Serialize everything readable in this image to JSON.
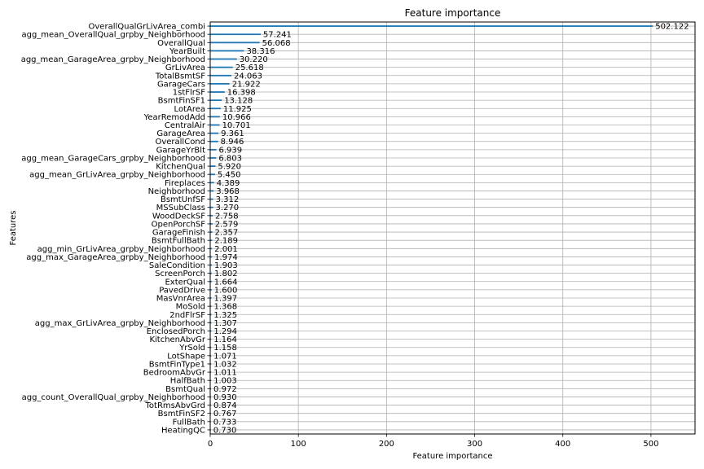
{
  "chart_data": {
    "type": "bar",
    "orientation": "horizontal",
    "title": "Feature importance",
    "xlabel": "Feature importance",
    "ylabel": "Features",
    "xlim": [
      0,
      550
    ],
    "xticks": [
      0,
      100,
      200,
      300,
      400,
      500
    ],
    "grid": true,
    "bar_color": "#1f77b4",
    "categories": [
      "OverallQualGrLivArea_combi",
      "agg_mean_OverallQual_grpby_Neighborhood",
      "OverallQual",
      "YearBuilt",
      "agg_mean_GarageArea_grpby_Neighborhood",
      "GrLivArea",
      "TotalBsmtSF",
      "GarageCars",
      "1stFlrSF",
      "BsmtFinSF1",
      "LotArea",
      "YearRemodAdd",
      "CentralAir",
      "GarageArea",
      "OverallCond",
      "GarageYrBlt",
      "agg_mean_GarageCars_grpby_Neighborhood",
      "KitchenQual",
      "agg_mean_GrLivArea_grpby_Neighborhood",
      "Fireplaces",
      "Neighborhood",
      "BsmtUnfSF",
      "MSSubClass",
      "WoodDeckSF",
      "OpenPorchSF",
      "GarageFinish",
      "BsmtFullBath",
      "agg_min_GrLivArea_grpby_Neighborhood",
      "agg_max_GarageArea_grpby_Neighborhood",
      "SaleCondition",
      "ScreenPorch",
      "ExterQual",
      "PavedDrive",
      "MasVnrArea",
      "MoSold",
      "2ndFlrSF",
      "agg_max_GrLivArea_grpby_Neighborhood",
      "EnclosedPorch",
      "KitchenAbvGr",
      "YrSold",
      "LotShape",
      "BsmtFinType1",
      "BedroomAbvGr",
      "HalfBath",
      "BsmtQual",
      "agg_count_OverallQual_grpby_Neighborhood",
      "TotRmsAbvGrd",
      "BsmtFinSF2",
      "FullBath",
      "HeatingQC"
    ],
    "values": [
      502.122,
      57.241,
      56.068,
      38.316,
      30.22,
      25.618,
      24.063,
      21.922,
      16.398,
      13.128,
      11.925,
      10.966,
      10.701,
      9.361,
      8.946,
      6.939,
      6.803,
      5.92,
      5.45,
      4.389,
      3.968,
      3.312,
      3.27,
      2.758,
      2.579,
      2.357,
      2.189,
      2.001,
      1.974,
      1.903,
      1.802,
      1.664,
      1.6,
      1.397,
      1.368,
      1.325,
      1.307,
      1.294,
      1.164,
      1.158,
      1.071,
      1.032,
      1.011,
      1.003,
      0.972,
      0.93,
      0.874,
      0.767,
      0.733,
      0.73
    ],
    "value_labels": [
      "502.122",
      "57.241",
      "56.068",
      "38.316",
      "30.220",
      "25.618",
      "24.063",
      "21.922",
      "16.398",
      "13.128",
      "11.925",
      "10.966",
      "10.701",
      "9.361",
      "8.946",
      "6.939",
      "6.803",
      "5.920",
      "5.450",
      "4.389",
      "3.968",
      "3.312",
      "3.270",
      "2.758",
      "2.579",
      "2.357",
      "2.189",
      "2.001",
      "1.974",
      "1.903",
      "1.802",
      "1.664",
      "1.600",
      "1.397",
      "1.368",
      "1.325",
      "1.307",
      "1.294",
      "1.164",
      "1.158",
      "1.071",
      "1.032",
      "1.011",
      "1.003",
      "0.972",
      "0.930",
      "0.874",
      "0.767",
      "0.733",
      "0.730"
    ]
  }
}
